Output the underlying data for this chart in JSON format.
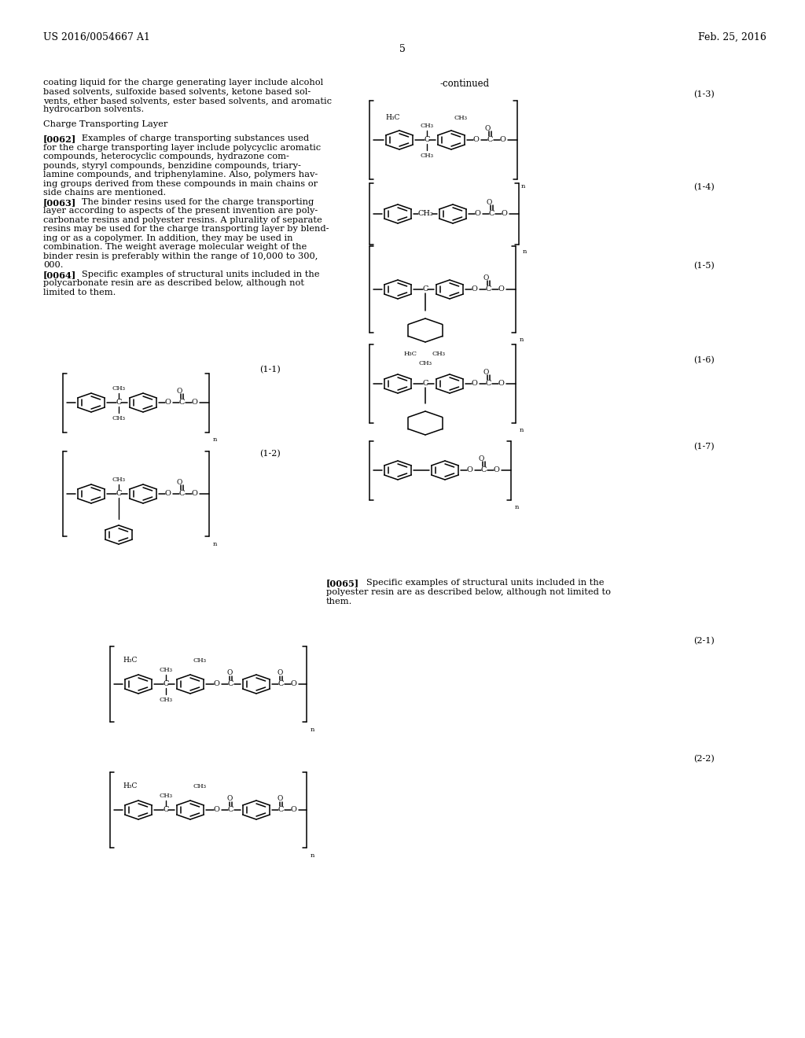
{
  "page": "5",
  "patent_left": "US 2016/0054667 A1",
  "patent_right": "Feb. 25, 2016",
  "bg": "#ffffff"
}
